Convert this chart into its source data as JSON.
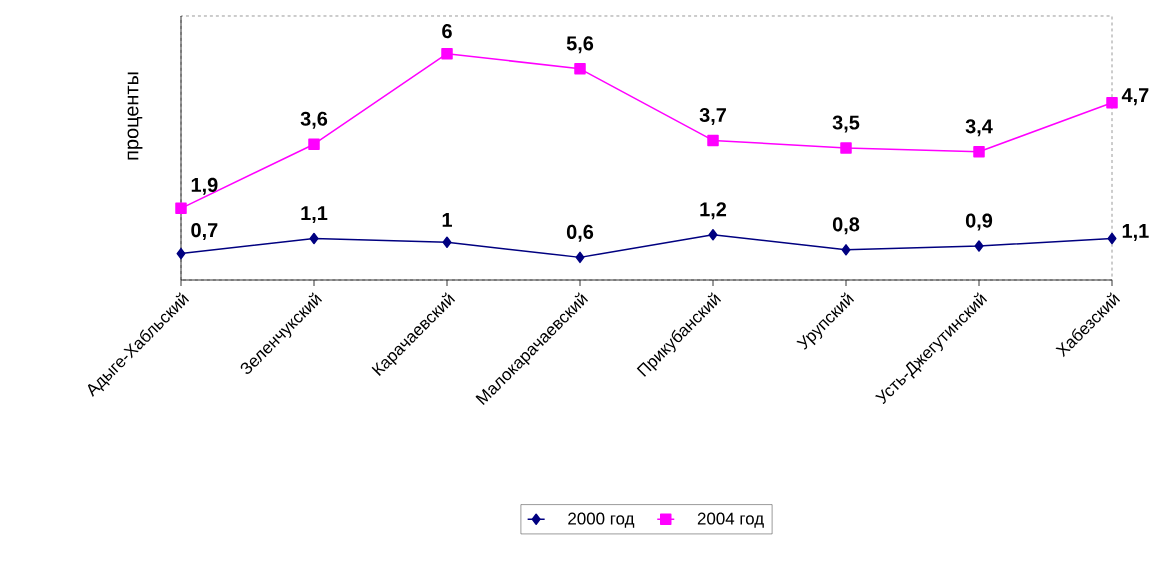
{
  "chart_data": {
    "type": "line",
    "ylabel": "проценты",
    "categories": [
      "Адыге-Хабльский",
      "Зеленчукский",
      "Карачаевский",
      "Малокарачаевский",
      "Прикубанский",
      "Урупский",
      "Усть-Джегутинский",
      "Хабезский"
    ],
    "series": [
      {
        "name": "2000 год",
        "color": "#000080",
        "marker": "diamond",
        "values": [
          0.7,
          1.1,
          1,
          0.6,
          1.2,
          0.8,
          0.9,
          1.1
        ],
        "value_labels": [
          "0,7",
          "1,1",
          "1",
          "0,6",
          "1,2",
          "0,8",
          "0,9",
          "1,1"
        ]
      },
      {
        "name": "2004 год",
        "color": "#ff00ff",
        "marker": "square",
        "values": [
          1.9,
          3.6,
          6,
          5.6,
          3.7,
          3.5,
          3.4,
          4.7
        ],
        "value_labels": [
          "1,9",
          "3,6",
          "6",
          "5,6",
          "3,7",
          "3,5",
          "3,4",
          "4,7"
        ]
      }
    ],
    "ylim": [
      0,
      7
    ],
    "legend": "bottom"
  }
}
